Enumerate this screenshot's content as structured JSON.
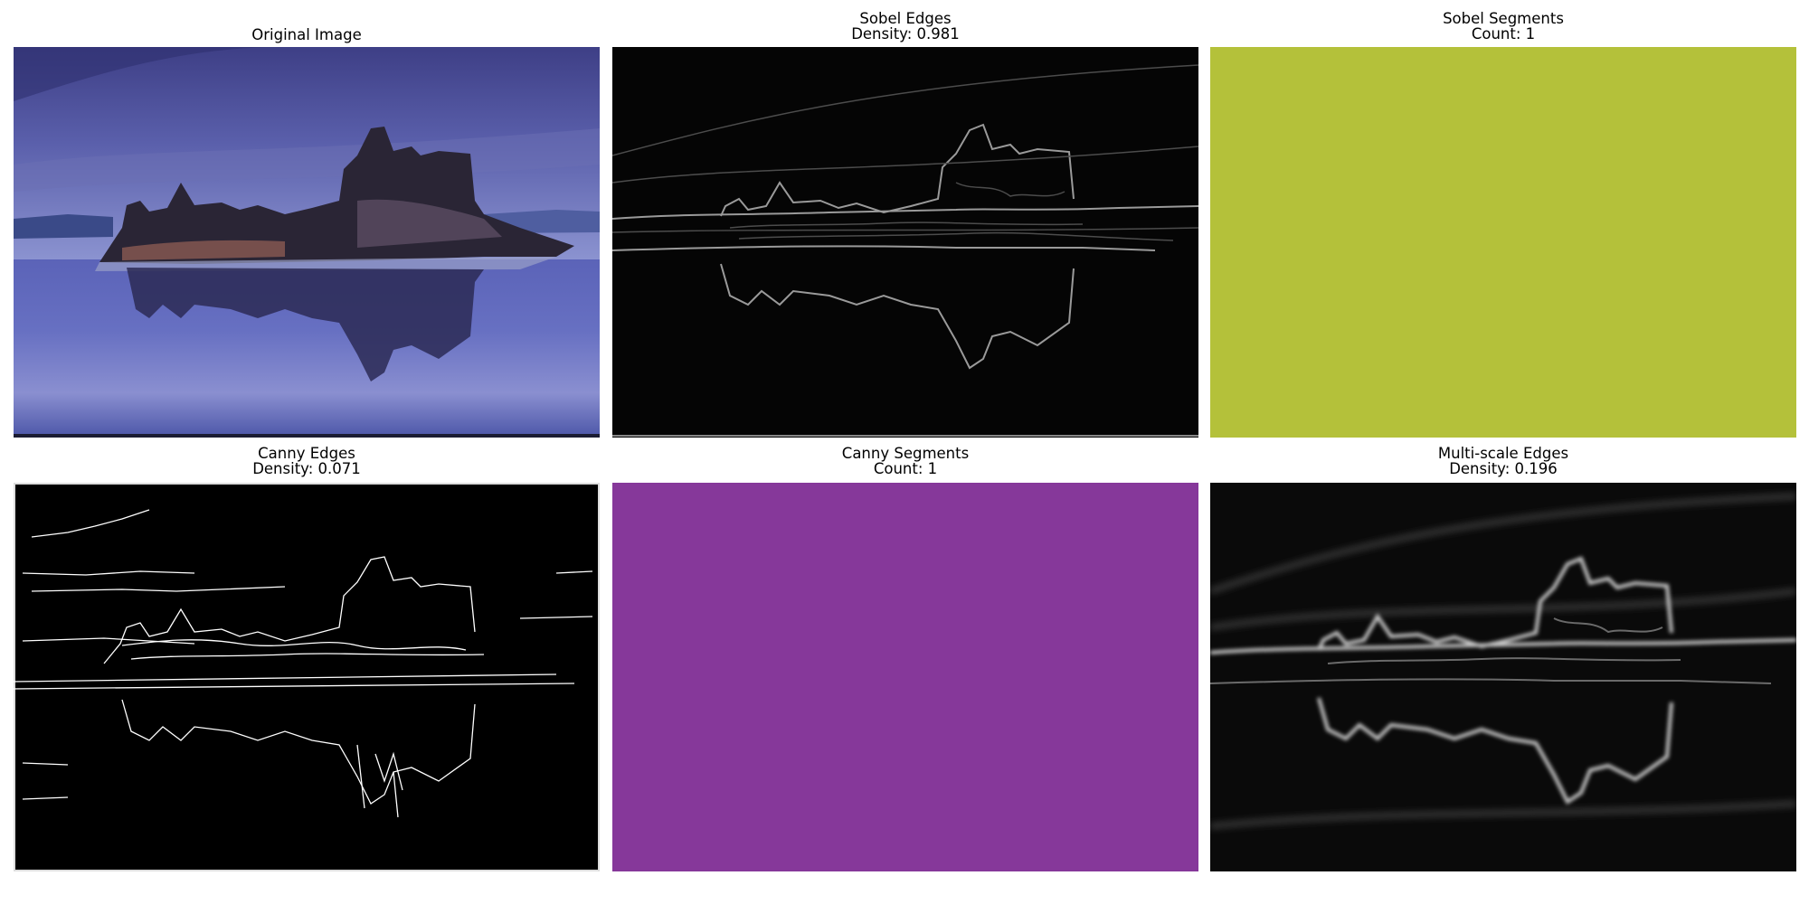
{
  "panels": {
    "original": {
      "title": "Original Image"
    },
    "sobel_edges": {
      "title": "Sobel Edges",
      "subtitle": "Density: 0.981"
    },
    "sobel_segments": {
      "title": "Sobel Segments",
      "subtitle": "Count: 1",
      "color": "#b4c13a"
    },
    "canny_edges": {
      "title": "Canny Edges",
      "subtitle": "Density: 0.071"
    },
    "canny_segments": {
      "title": "Canny Segments",
      "subtitle": "Count: 1",
      "color": "#86389a"
    },
    "multiscale_edges": {
      "title": "Multi-scale Edges",
      "subtitle": "Density: 0.196"
    }
  }
}
